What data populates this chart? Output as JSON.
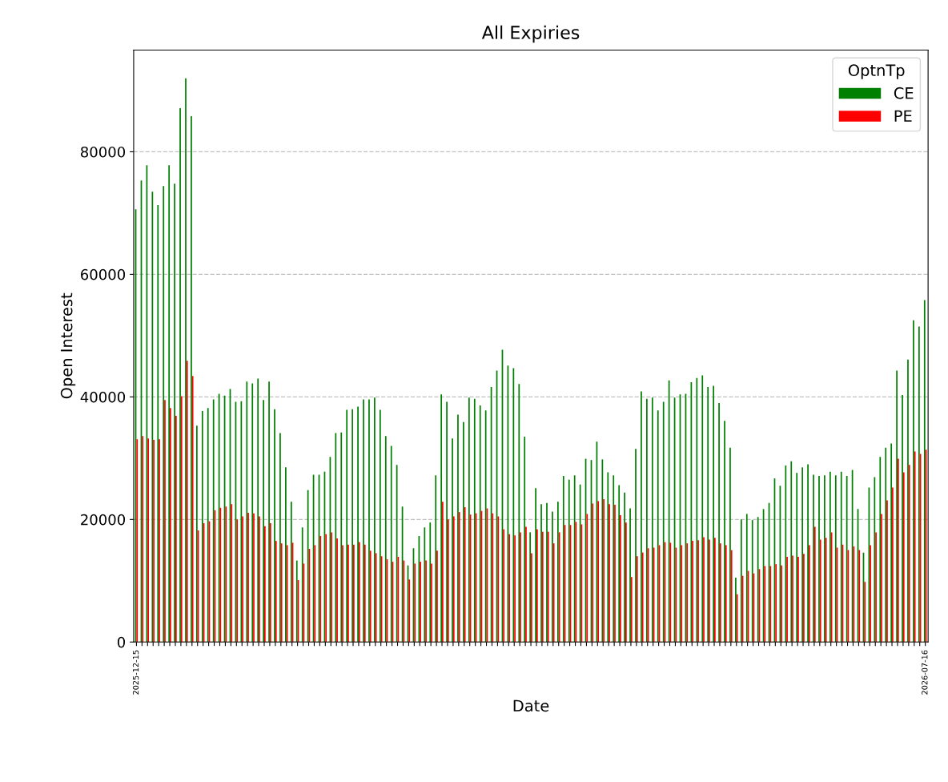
{
  "chart_data": {
    "type": "bar",
    "title": "All Expiries",
    "xlabel": "Date",
    "ylabel": "Open Interest",
    "legend_title": "OptnTp",
    "legend": "top right",
    "grid": "y",
    "categories": [
      "2025-12-15",
      null,
      null,
      null,
      null,
      null,
      null,
      null,
      null,
      null,
      null,
      null,
      null,
      null,
      null,
      null,
      null,
      null,
      null,
      null,
      null,
      null,
      null,
      null,
      null,
      null,
      null,
      null,
      null,
      null,
      null,
      null,
      null,
      null,
      null,
      null,
      null,
      null,
      null,
      null,
      null,
      null,
      null,
      null,
      null,
      null,
      null,
      null,
      null,
      null,
      null,
      null,
      null,
      null,
      null,
      null,
      null,
      null,
      null,
      null,
      null,
      null,
      null,
      null,
      null,
      null,
      null,
      null,
      null,
      null,
      null,
      null,
      null,
      null,
      null,
      null,
      null,
      null,
      null,
      null,
      null,
      null,
      null,
      null,
      null,
      null,
      null,
      null,
      null,
      null,
      null,
      null,
      null,
      null,
      null,
      null,
      null,
      null,
      null,
      null,
      null,
      null,
      null,
      null,
      null,
      null,
      null,
      null,
      null,
      null,
      null,
      null,
      null,
      null,
      null,
      null,
      null,
      null,
      null,
      null,
      null,
      null,
      null,
      null,
      null,
      null,
      null,
      null,
      null,
      null,
      null,
      null,
      null,
      null,
      null,
      null,
      null,
      null,
      null,
      null,
      null,
      null,
      "2026-07-16"
    ],
    "ylim": [
      0,
      96600
    ],
    "yticks": [
      0,
      20000,
      40000,
      60000,
      80000
    ],
    "series": [
      {
        "name": "CE",
        "color": "#008000",
        "values": [
          70600,
          75300,
          77800,
          73500,
          71300,
          74400,
          77800,
          74800,
          87100,
          92000,
          85800,
          35300,
          37700,
          38200,
          39600,
          40500,
          40200,
          41300,
          39200,
          39300,
          42500,
          42200,
          43000,
          39500,
          42500,
          38000,
          34100,
          28500,
          22900,
          13300,
          18700,
          24800,
          27300,
          27300,
          27800,
          30200,
          34100,
          34200,
          37900,
          38000,
          38400,
          39600,
          39600,
          39900,
          37900,
          33600,
          32000,
          28900,
          22100,
          12500,
          15300,
          17300,
          18700,
          19500,
          27200,
          40400,
          39200,
          33200,
          37100,
          35900,
          39900,
          39700,
          38600,
          37800,
          41600,
          44300,
          47700,
          45100,
          44700,
          42100,
          33500,
          17900,
          25100,
          22500,
          22700,
          21300,
          22900,
          27100,
          26500,
          27200,
          25700,
          29900,
          29700,
          32700,
          29800,
          27700,
          27200,
          25600,
          24400,
          21800,
          31500,
          40900,
          39700,
          39900,
          37800,
          39200,
          42700,
          39900,
          40400,
          40500,
          42400,
          43100,
          43500,
          41600,
          41800,
          39000,
          36100,
          31700,
          10500,
          20000,
          20900,
          19900,
          20400,
          21700,
          22700,
          26700,
          25500,
          28800,
          29500,
          27600,
          28500,
          29000,
          27300,
          27100,
          27200,
          27800,
          27200,
          27800,
          27100,
          28100,
          21700,
          14600,
          25200,
          26900,
          30200,
          31700,
          32400,
          44300,
          40300,
          46100,
          52500,
          51500,
          55800
        ]
      },
      {
        "name": "PE",
        "color": "#ff0000",
        "values": [
          33100,
          33600,
          33200,
          33000,
          33100,
          39500,
          38200,
          36900,
          40100,
          45900,
          43400,
          18200,
          19400,
          19700,
          21500,
          21900,
          22100,
          22500,
          20000,
          20500,
          21100,
          21000,
          20500,
          18900,
          19400,
          16500,
          16100,
          15800,
          16200,
          10100,
          12800,
          15200,
          15800,
          17300,
          17600,
          17900,
          16900,
          15800,
          15900,
          15900,
          16300,
          15900,
          14900,
          14500,
          14000,
          13500,
          13100,
          13900,
          13300,
          10200,
          12800,
          13100,
          13300,
          12800,
          14900,
          22900,
          20000,
          20500,
          21200,
          22000,
          20800,
          21000,
          21400,
          21800,
          21000,
          20500,
          18400,
          17600,
          17400,
          17900,
          18800,
          14500,
          18400,
          18000,
          18000,
          16100,
          17900,
          19100,
          19100,
          19600,
          19200,
          20900,
          22600,
          23000,
          23300,
          22500,
          22400,
          20700,
          19500,
          10600,
          14000,
          14600,
          15300,
          15400,
          15800,
          16300,
          16200,
          15400,
          15800,
          16100,
          16500,
          16600,
          17100,
          16700,
          17000,
          16100,
          15800,
          15000,
          7800,
          10800,
          11600,
          11200,
          11900,
          12400,
          12400,
          12700,
          12500,
          13900,
          14100,
          13900,
          14400,
          15800,
          18800,
          16700,
          17000,
          17900,
          15400,
          15900,
          15000,
          15600,
          15000,
          9800,
          15800,
          17900,
          20900,
          23100,
          25200,
          29900,
          27700,
          28900,
          31100,
          30700,
          31400
        ]
      }
    ]
  }
}
